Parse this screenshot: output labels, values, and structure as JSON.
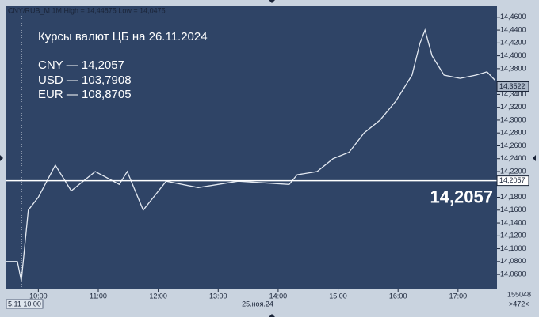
{
  "chart_data": {
    "type": "line",
    "header": "CNY/RUB_M 1M High = 14,44875 Low = 14,0475",
    "annotations": [
      "Курсы валют ЦБ на 26.11.2024",
      "CNY — 14,2057",
      "USD — 103,7908",
      "EUR — 108,8705"
    ],
    "x": [
      568,
      579,
      583,
      590,
      600,
      617,
      633,
      657,
      681,
      689,
      705,
      728,
      760,
      800,
      851,
      859,
      879,
      895,
      911,
      926,
      942,
      958,
      974,
      982,
      987,
      994,
      1006,
      1022,
      1038,
      1049,
      1057
    ],
    "series": [
      {
        "name": "CNY/RUB_M",
        "color": "#e3e9f1",
        "values": [
          14.08,
          14.08,
          14.05,
          14.16,
          14.18,
          14.23,
          14.19,
          14.22,
          14.2,
          14.22,
          14.16,
          14.205,
          14.195,
          14.205,
          14.2,
          14.215,
          14.22,
          14.24,
          14.25,
          14.28,
          14.3,
          14.33,
          14.37,
          14.42,
          14.44,
          14.4,
          14.37,
          14.365,
          14.37,
          14.375,
          14.362
        ]
      }
    ],
    "xlim": [
      568,
      1059
    ],
    "xticks": [
      {
        "value": 600,
        "label": "10:00"
      },
      {
        "value": 660,
        "label": "11:00"
      },
      {
        "value": 720,
        "label": "12:00"
      },
      {
        "value": 780,
        "label": "13:00"
      },
      {
        "value": 840,
        "label": "14:00"
      },
      {
        "value": 900,
        "label": "15:00"
      },
      {
        "value": 960,
        "label": "16:00"
      },
      {
        "value": 1020,
        "label": "17:00"
      }
    ],
    "ylim": [
      14.038,
      14.477
    ],
    "yticks": [
      {
        "value": 14.06,
        "label": "14,0600"
      },
      {
        "value": 14.08,
        "label": "14,0800"
      },
      {
        "value": 14.1,
        "label": "14,1000"
      },
      {
        "value": 14.12,
        "label": "14,1200"
      },
      {
        "value": 14.14,
        "label": "14,1400"
      },
      {
        "value": 14.16,
        "label": "14,1600"
      },
      {
        "value": 14.18,
        "label": "14,1800"
      },
      {
        "value": 14.22,
        "label": "14,2200"
      },
      {
        "value": 14.24,
        "label": "14,2400"
      },
      {
        "value": 14.26,
        "label": "14,2600"
      },
      {
        "value": 14.28,
        "label": "14,2800"
      },
      {
        "value": 14.3,
        "label": "14,3000"
      },
      {
        "value": 14.32,
        "label": "14,3200"
      },
      {
        "value": 14.34,
        "label": "14,3400"
      },
      {
        "value": 14.38,
        "label": "14,3800"
      },
      {
        "value": 14.4,
        "label": "14,4000"
      },
      {
        "value": 14.42,
        "label": "14,4200"
      },
      {
        "value": 14.44,
        "label": "14,4400"
      },
      {
        "value": 14.46,
        "label": "14,4600"
      }
    ],
    "reference_line": {
      "value": 14.2057,
      "label": "14,2057"
    },
    "last_price": {
      "value": 14.3522,
      "label": "14,3522"
    },
    "date_label": "25.ноя.24",
    "cursor_label": "5.11 10:00",
    "footer_values": [
      "155048",
      ">472<"
    ]
  }
}
